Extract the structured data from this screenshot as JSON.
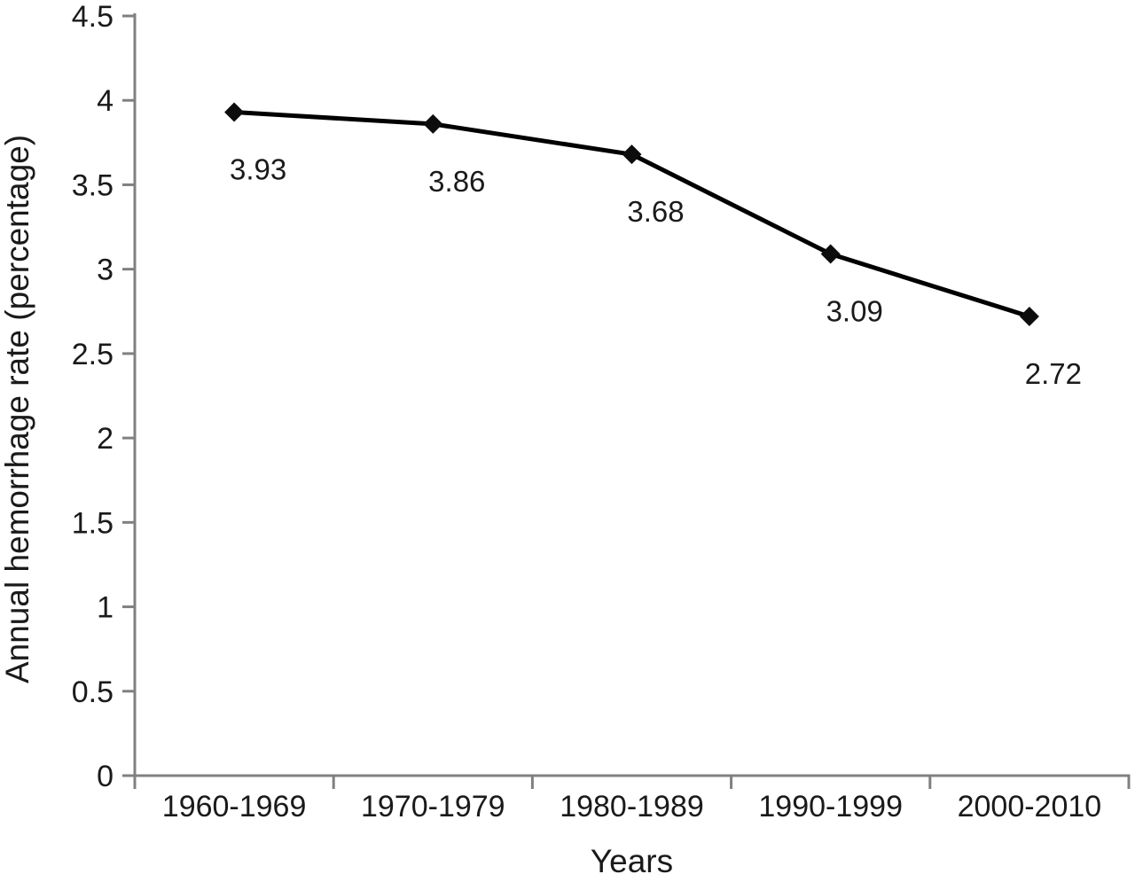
{
  "chart_data": {
    "type": "line",
    "title": "",
    "categories": [
      "1960-1969",
      "1970-1979",
      "1980-1989",
      "1990-1999",
      "2000-2010"
    ],
    "series": [
      {
        "name": "Annual hemorrhage rate",
        "values": [
          3.93,
          3.86,
          3.68,
          3.09,
          2.72
        ],
        "point_labels": [
          "3.93",
          "3.86",
          "3.68",
          "3.09",
          "2.72"
        ]
      }
    ],
    "xlabel": "Years",
    "ylabel": "Annual hemorrhage rate (percentage)",
    "ylim": [
      0,
      4.5
    ],
    "ytick_step": 0.5,
    "ytick_labels": [
      "0",
      "0.5",
      "1",
      "1.5",
      "2",
      "2.5",
      "3",
      "3.5",
      "4",
      "4.5"
    ],
    "grid": false,
    "legend": "none",
    "marker": "diamond",
    "colors": {
      "line": "#000000",
      "marker": "#0d0d0d",
      "axis": "#808080",
      "text": "#1a1a1a",
      "background": "#ffffff"
    }
  }
}
